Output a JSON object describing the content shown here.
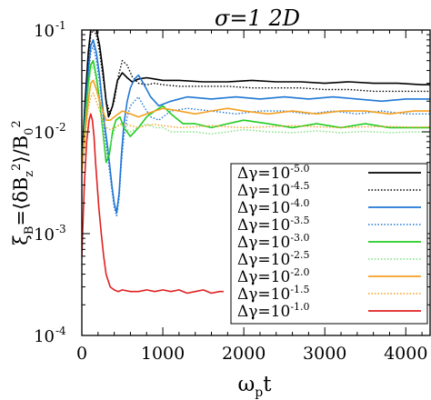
{
  "chart_data": {
    "type": "line",
    "title": "σ=1  2D",
    "xlabel": "ω_p t",
    "ylabel": "ξ_B = ⟨δB_z²⟩ / B_0²",
    "xlim": [
      0,
      4300
    ],
    "ylim": [
      0.0001,
      0.1
    ],
    "yscale": "log",
    "grid": false,
    "legend_position": "lower-right",
    "x_ticks": [
      0,
      1000,
      2000,
      3000,
      4000
    ],
    "x_tick_labels": [
      "0",
      "1000",
      "2000",
      "3000",
      "4000"
    ],
    "y_ticks": [
      0.0001,
      0.001,
      0.01,
      0.1
    ],
    "y_tick_labels": [
      {
        "base": "10",
        "exp": "-4"
      },
      {
        "base": "10",
        "exp": "-3"
      },
      {
        "base": "10",
        "exp": "-2"
      },
      {
        "base": "10",
        "exp": "-1"
      }
    ],
    "series": [
      {
        "name": "Δγ=10^{-5.0}",
        "label_prefix": "Δγ=10",
        "label_exp": "-5.0",
        "color": "#000000",
        "dash": "solid",
        "x": [
          0,
          40,
          80,
          110,
          140,
          180,
          220,
          260,
          300,
          330,
          380,
          440,
          500,
          560,
          620,
          700,
          800,
          900,
          1000,
          1200,
          1500,
          1800,
          2100,
          2400,
          2700,
          3000,
          3300,
          3600,
          3900,
          4200,
          4300
        ],
        "y": [
          0.005,
          0.02,
          0.06,
          0.1,
          0.11,
          0.1,
          0.07,
          0.04,
          0.02,
          0.014,
          0.018,
          0.032,
          0.038,
          0.034,
          0.031,
          0.033,
          0.034,
          0.033,
          0.032,
          0.032,
          0.031,
          0.031,
          0.032,
          0.031,
          0.031,
          0.03,
          0.031,
          0.03,
          0.03,
          0.029,
          0.029
        ]
      },
      {
        "name": "Δγ=10^{-4.5}",
        "label_prefix": "Δγ=10",
        "label_exp": "-4.5",
        "color": "#000000",
        "dash": "dotted",
        "x": [
          0,
          40,
          80,
          110,
          140,
          180,
          220,
          260,
          300,
          350,
          400,
          450,
          500,
          560,
          620,
          700,
          800,
          900,
          1000,
          1200,
          1500,
          1800,
          2100,
          2400,
          2700,
          3000,
          3300,
          3600,
          3900,
          4200,
          4300
        ],
        "y": [
          0.005,
          0.02,
          0.05,
          0.09,
          0.1,
          0.09,
          0.06,
          0.035,
          0.02,
          0.015,
          0.02,
          0.035,
          0.05,
          0.045,
          0.035,
          0.03,
          0.029,
          0.03,
          0.029,
          0.028,
          0.028,
          0.028,
          0.027,
          0.027,
          0.027,
          0.026,
          0.026,
          0.025,
          0.025,
          0.025,
          0.025
        ]
      },
      {
        "name": "Δγ=10^{-4.0}",
        "label_prefix": "Δγ=10",
        "label_exp": "-4.0",
        "color": "#1f77d4",
        "dash": "solid",
        "x": [
          0,
          40,
          80,
          110,
          140,
          180,
          220,
          250,
          280,
          310,
          340,
          370,
          400,
          430,
          460,
          490,
          520,
          560,
          600,
          650,
          700,
          760,
          850,
          950,
          1100,
          1300,
          1600,
          1900,
          2200,
          2500,
          2800,
          3100,
          3400,
          3700,
          4000,
          4300
        ],
        "y": [
          0.004,
          0.015,
          0.04,
          0.07,
          0.08,
          0.06,
          0.035,
          0.02,
          0.012,
          0.008,
          0.005,
          0.003,
          0.002,
          0.0016,
          0.0025,
          0.006,
          0.012,
          0.02,
          0.027,
          0.033,
          0.036,
          0.03,
          0.022,
          0.018,
          0.02,
          0.022,
          0.021,
          0.022,
          0.021,
          0.022,
          0.021,
          0.022,
          0.021,
          0.02,
          0.021,
          0.021
        ]
      },
      {
        "name": "Δγ=10^{-3.5}",
        "label_prefix": "Δγ=10",
        "label_exp": "-3.5",
        "color": "#1f77d4",
        "dash": "dotted",
        "x": [
          0,
          40,
          80,
          110,
          140,
          180,
          220,
          250,
          280,
          310,
          340,
          370,
          400,
          430,
          460,
          490,
          520,
          560,
          600,
          650,
          700,
          760,
          850,
          950,
          1100,
          1300,
          1600,
          1900,
          2200,
          2500,
          2800,
          3100,
          3400,
          3700,
          4000,
          4300
        ],
        "y": [
          0.004,
          0.014,
          0.035,
          0.06,
          0.07,
          0.05,
          0.03,
          0.018,
          0.01,
          0.0065,
          0.0042,
          0.0027,
          0.0018,
          0.0015,
          0.0022,
          0.005,
          0.009,
          0.014,
          0.018,
          0.02,
          0.022,
          0.018,
          0.014,
          0.013,
          0.016,
          0.017,
          0.016,
          0.015,
          0.016,
          0.016,
          0.015,
          0.016,
          0.015,
          0.016,
          0.015,
          0.015
        ]
      },
      {
        "name": "Δγ=10^{-3.0}",
        "label_prefix": "Δγ=10",
        "label_exp": "-3.0",
        "color": "#22cc22",
        "dash": "solid",
        "x": [
          0,
          40,
          80,
          110,
          140,
          180,
          220,
          260,
          300,
          340,
          380,
          420,
          470,
          520,
          600,
          700,
          800,
          900,
          1000,
          1100,
          1250,
          1400,
          1600,
          1800,
          2000,
          2300,
          2600,
          2900,
          3200,
          3500,
          3800,
          4100,
          4300
        ],
        "y": [
          0.004,
          0.012,
          0.03,
          0.045,
          0.05,
          0.035,
          0.02,
          0.01,
          0.005,
          0.006,
          0.01,
          0.013,
          0.014,
          0.011,
          0.009,
          0.011,
          0.014,
          0.016,
          0.018,
          0.015,
          0.012,
          0.012,
          0.011,
          0.012,
          0.013,
          0.012,
          0.011,
          0.012,
          0.011,
          0.012,
          0.011,
          0.011,
          0.011
        ]
      },
      {
        "name": "Δγ=10^{-2.5}",
        "label_prefix": "Δγ=10",
        "label_exp": "-2.5",
        "color": "#7ee07e",
        "dash": "dotted",
        "x": [
          0,
          40,
          80,
          110,
          140,
          180,
          220,
          260,
          300,
          340,
          380,
          420,
          470,
          520,
          600,
          700,
          800,
          900,
          1000,
          1100,
          1250,
          1400,
          1600,
          1800,
          2000,
          2300,
          2600,
          2900,
          3200,
          3500,
          3800,
          4100,
          4300
        ],
        "y": [
          0.004,
          0.011,
          0.025,
          0.04,
          0.045,
          0.03,
          0.018,
          0.01,
          0.006,
          0.007,
          0.009,
          0.011,
          0.012,
          0.011,
          0.01,
          0.011,
          0.012,
          0.011,
          0.011,
          0.01,
          0.01,
          0.01,
          0.0095,
          0.01,
          0.0105,
          0.01,
          0.0098,
          0.0102,
          0.0098,
          0.0101,
          0.0098,
          0.01,
          0.0099
        ]
      },
      {
        "name": "Δγ=10^{-2.0}",
        "label_prefix": "Δγ=10",
        "label_exp": "-2.0",
        "color": "#f5a020",
        "dash": "solid",
        "x": [
          0,
          40,
          80,
          110,
          140,
          180,
          220,
          260,
          300,
          350,
          400,
          450,
          500,
          600,
          700,
          800,
          900,
          1000,
          1200,
          1400,
          1600,
          1800,
          2000,
          2300,
          2600,
          2900,
          3200,
          3500,
          3800,
          4100,
          4300
        ],
        "y": [
          0.004,
          0.01,
          0.02,
          0.03,
          0.032,
          0.026,
          0.02,
          0.016,
          0.013,
          0.013,
          0.014,
          0.015,
          0.016,
          0.015,
          0.014,
          0.015,
          0.016,
          0.017,
          0.016,
          0.015,
          0.016,
          0.017,
          0.016,
          0.015,
          0.016,
          0.015,
          0.016,
          0.016,
          0.015,
          0.016,
          0.016
        ]
      },
      {
        "name": "Δγ=10^{-1.5}",
        "label_prefix": "Δγ=10",
        "label_exp": "-1.5",
        "color": "#f5a020",
        "dash": "dotted",
        "x": [
          0,
          40,
          80,
          110,
          140,
          180,
          220,
          260,
          300,
          350,
          400,
          450,
          500,
          600,
          700,
          800,
          900,
          1000,
          1200,
          1400,
          1600,
          1800,
          2000,
          2300,
          2600,
          2900,
          3200,
          3500,
          3800,
          4100,
          4300
        ],
        "y": [
          0.004,
          0.009,
          0.017,
          0.022,
          0.024,
          0.02,
          0.016,
          0.013,
          0.011,
          0.0105,
          0.011,
          0.0115,
          0.012,
          0.0115,
          0.011,
          0.0115,
          0.0118,
          0.0115,
          0.011,
          0.0112,
          0.0115,
          0.0112,
          0.011,
          0.0112,
          0.0115,
          0.0112,
          0.011,
          0.0112,
          0.0113,
          0.0111,
          0.0112
        ]
      },
      {
        "name": "Δγ=10^{-1.0}",
        "label_prefix": "Δγ=10",
        "label_exp": "-1.0",
        "color": "#e02020",
        "dash": "solid",
        "x": [
          0,
          30,
          60,
          90,
          110,
          130,
          150,
          170,
          190,
          210,
          240,
          270,
          300,
          350,
          400,
          450,
          500,
          600,
          700,
          800,
          900,
          1000,
          1100,
          1200,
          1300,
          1400,
          1500,
          1600,
          1700,
          1750
        ],
        "y": [
          0.0006,
          0.003,
          0.008,
          0.013,
          0.015,
          0.013,
          0.009,
          0.005,
          0.003,
          0.0018,
          0.001,
          0.0006,
          0.0004,
          0.0003,
          0.00028,
          0.00027,
          0.00028,
          0.00027,
          0.00027,
          0.00028,
          0.00027,
          0.00028,
          0.00027,
          0.00028,
          0.00026,
          0.00027,
          0.00028,
          0.00026,
          0.00027,
          0.00027
        ]
      }
    ]
  }
}
